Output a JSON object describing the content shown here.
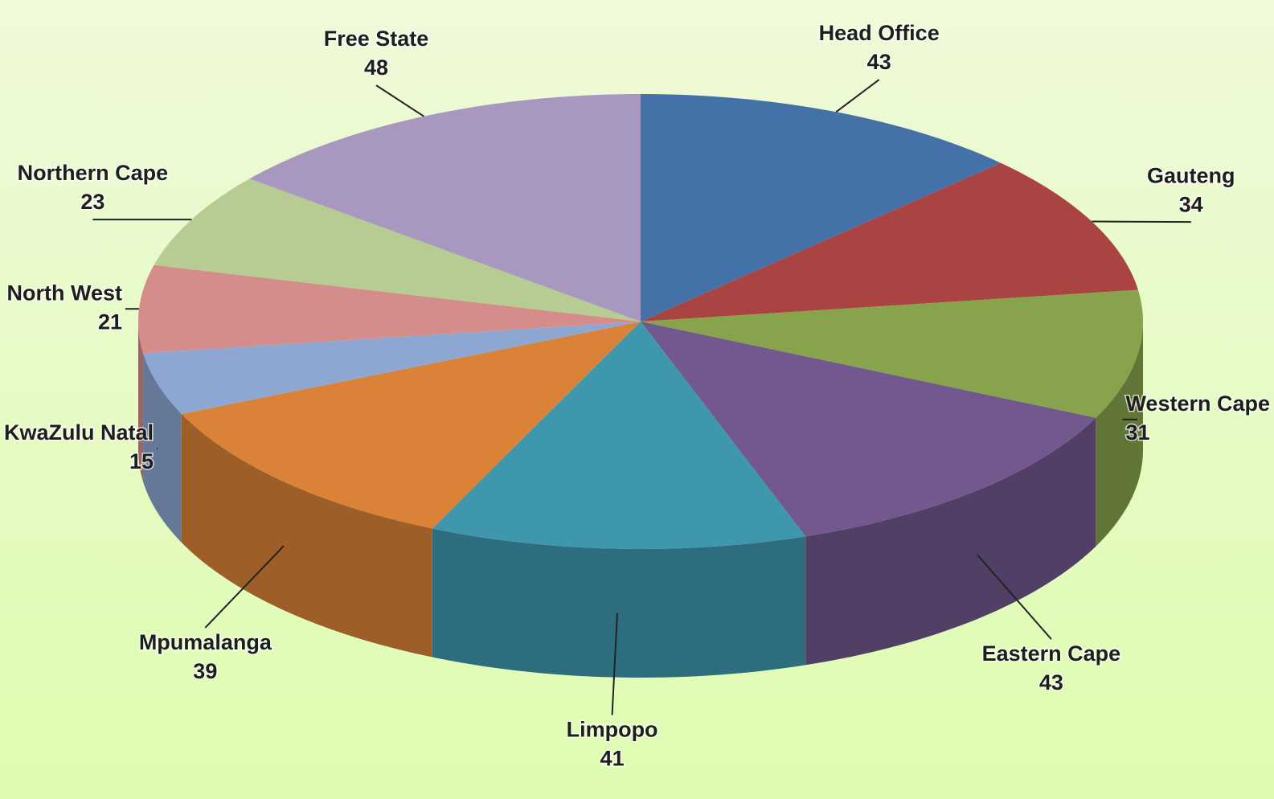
{
  "chart_data": {
    "type": "pie",
    "categories": [
      "Head Office",
      "Gauteng",
      "Western Cape",
      "Eastern Cape",
      "Limpopo",
      "Mpumalanga",
      "KwaZulu Natal",
      "North West",
      "Northern Cape",
      "Free State"
    ],
    "values": [
      43,
      34,
      31,
      43,
      41,
      39,
      15,
      21,
      23,
      48
    ],
    "colors": [
      "#4472a8",
      "#a94442",
      "#87a34b",
      "#72588e",
      "#3f97ae",
      "#da8238",
      "#8ea7d2",
      "#d48d8b",
      "#b6cc92",
      "#a898bf"
    ],
    "three_d": true
  }
}
